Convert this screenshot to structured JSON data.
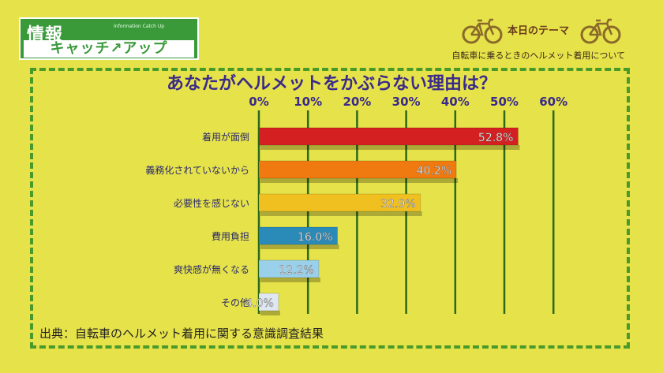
{
  "logo": {
    "line1": "情報",
    "line2": "キャッチ↗アップ",
    "small": "Information Catch Up"
  },
  "theme": {
    "label": "本日のテーマ",
    "topic": "自転車に乗るときのヘルメット着用について"
  },
  "source": "出典：自転車のヘルメット着用に関する意識調査結果",
  "colors": {
    "background": "#e6e24a",
    "frame": "#4a9a2a",
    "title": "#3a2a8a"
  },
  "chart_data": {
    "type": "bar",
    "orientation": "horizontal",
    "title": "あなたがヘルメットをかぶらない理由は？",
    "categories": [
      "着用が面倒",
      "義務化されていないから",
      "必要性を感じない",
      "費用負担",
      "爽快感が無くなる",
      "その他"
    ],
    "values": [
      52.8,
      40.2,
      32.9,
      16.0,
      12.2,
      4.0
    ],
    "value_labels": [
      "52.8%",
      "40.2%",
      "32.9%",
      "16.0%",
      "12.2%",
      "4.0%"
    ],
    "bar_colors": [
      "#d42020",
      "#f07a10",
      "#f0c020",
      "#2a8ab8",
      "#9ad0ea",
      "#dfe8f2"
    ],
    "ticks": [
      0,
      10,
      20,
      30,
      40,
      50,
      60
    ],
    "tick_labels": [
      "0%",
      "10%",
      "20%",
      "30%",
      "40%",
      "50%",
      "60%"
    ],
    "xlim": [
      0,
      60
    ],
    "grid": true,
    "tick_position": "top"
  }
}
